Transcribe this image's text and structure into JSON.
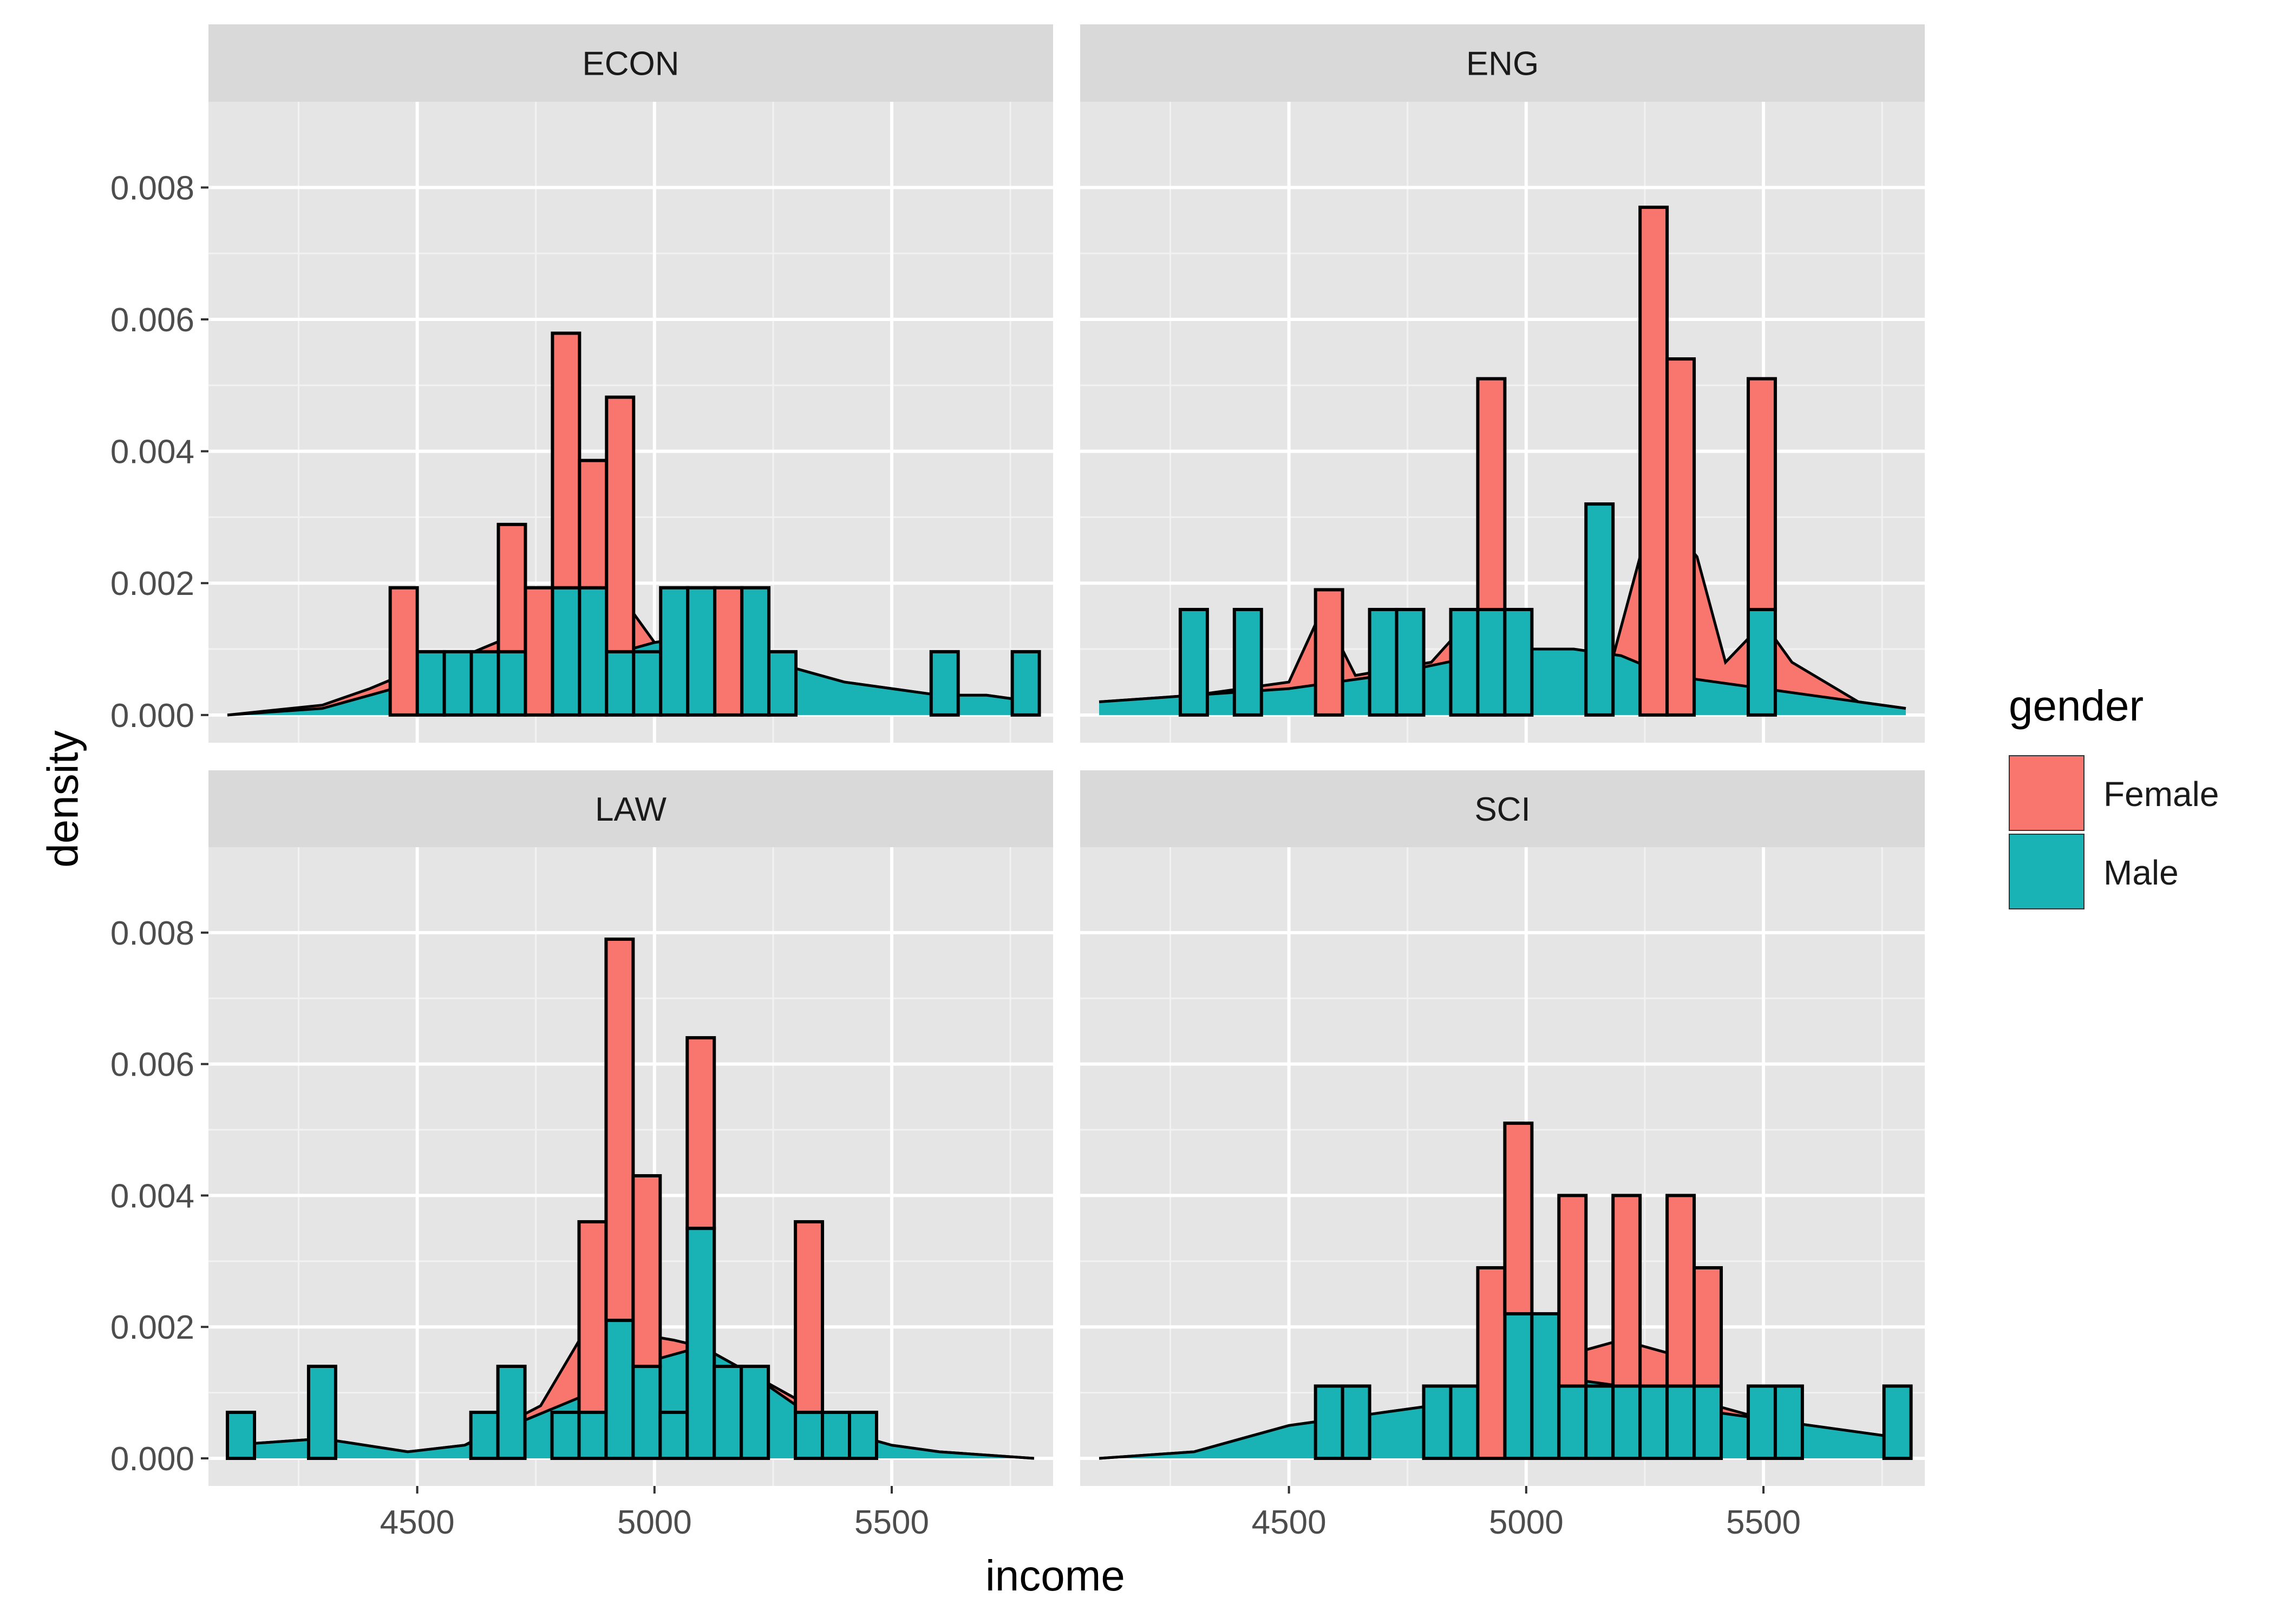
{
  "chart_data": {
    "type": "histogram-with-density",
    "xlabel": "income",
    "ylabel": "density",
    "xlim": [
      4060,
      5840
    ],
    "ylim": [
      -0.00042,
      0.0093
    ],
    "x_ticks": [
      4500,
      5000,
      5500
    ],
    "y_ticks": [
      0,
      0.002,
      0.004,
      0.006,
      0.008
    ],
    "y_tick_labels": [
      "0.000",
      "0.002",
      "0.004",
      "0.006",
      "0.008"
    ],
    "bins": {
      "start": 4100,
      "width": 57
    },
    "legend": {
      "title": "gender",
      "placement": "right",
      "entries": [
        {
          "name": "Female",
          "color": "#F8766D"
        },
        {
          "name": "Male",
          "color": "#00BFC4"
        }
      ]
    },
    "colors": {
      "Female": "#F8766D",
      "Male": "#19B3B6",
      "panel": "#E5E5E5",
      "strip": "#D9D9D9",
      "outline": "#000000"
    },
    "stacking": "stacked (Female on top of Male)",
    "facets": [
      {
        "title": "ECON",
        "hist_male": [
          [
            4500,
            0.00096
          ],
          [
            4557,
            0.00096
          ],
          [
            4614,
            0.00096
          ],
          [
            4671,
            0.00096
          ],
          [
            4785,
            0.00193
          ],
          [
            4842,
            0.00193
          ],
          [
            4899,
            0.00096
          ],
          [
            4956,
            0.00096
          ],
          [
            5013,
            0.00193
          ],
          [
            5070,
            0.00193
          ],
          [
            5184,
            0.00193
          ],
          [
            5241,
            0.00096
          ],
          [
            5583,
            0.00096
          ],
          [
            5754,
            0.00096
          ]
        ],
        "hist_female": [
          [
            4443,
            0.00193
          ],
          [
            4671,
            0.00193
          ],
          [
            4785,
            0.00386
          ],
          [
            4842,
            0.00193
          ],
          [
            4899,
            0.00386
          ],
          [
            4728,
            0.00193
          ],
          [
            5127,
            0.00193
          ]
        ],
        "density_male": [
          [
            4100,
            0
          ],
          [
            4300,
            0.0001
          ],
          [
            4400,
            0.0003
          ],
          [
            4500,
            0.0005
          ],
          [
            4600,
            0.0006
          ],
          [
            4700,
            0.0007
          ],
          [
            4800,
            0.0008
          ],
          [
            4900,
            0.0009
          ],
          [
            5000,
            0.0011
          ],
          [
            5100,
            0.0012
          ],
          [
            5200,
            0.0011
          ],
          [
            5300,
            0.0007
          ],
          [
            5400,
            0.0005
          ],
          [
            5500,
            0.0004
          ],
          [
            5600,
            0.0003
          ],
          [
            5700,
            0.0003
          ],
          [
            5800,
            0.0002
          ]
        ],
        "density_stack_top": [
          [
            4100,
            0
          ],
          [
            4300,
            0.00015
          ],
          [
            4400,
            0.0004
          ],
          [
            4500,
            0.0007
          ],
          [
            4600,
            0.0009
          ],
          [
            4700,
            0.0012
          ],
          [
            4800,
            0.002
          ],
          [
            4850,
            0.0027
          ],
          [
            4900,
            0.0023
          ],
          [
            4950,
            0.0016
          ],
          [
            5000,
            0.0011
          ],
          [
            5100,
            0.0012
          ],
          [
            5200,
            0.0011
          ],
          [
            5300,
            0.0007
          ],
          [
            5400,
            0.0005
          ],
          [
            5500,
            0.0004
          ],
          [
            5600,
            0.0003
          ],
          [
            5700,
            0.0003
          ],
          [
            5800,
            0.0002
          ]
        ]
      },
      {
        "title": "ENG",
        "hist_male": [
          [
            4271,
            0.0016
          ],
          [
            4385,
            0.0016
          ],
          [
            4670,
            0.0016
          ],
          [
            4727,
            0.0016
          ],
          [
            4841,
            0.0016
          ],
          [
            4898,
            0.0016
          ],
          [
            4955,
            0.0016
          ],
          [
            5126,
            0.0032
          ],
          [
            5468,
            0.0016
          ]
        ],
        "hist_female": [
          [
            4556,
            0.0019
          ],
          [
            4898,
            0.0035
          ],
          [
            5240,
            0.0077
          ],
          [
            5297,
            0.0054
          ],
          [
            5468,
            0.0035
          ]
        ],
        "density_male": [
          [
            4100,
            0.0002
          ],
          [
            4300,
            0.0003
          ],
          [
            4500,
            0.0004
          ],
          [
            4700,
            0.0006
          ],
          [
            4900,
            0.0009
          ],
          [
            5000,
            0.001
          ],
          [
            5100,
            0.001
          ],
          [
            5200,
            0.0009
          ],
          [
            5300,
            0.0006
          ],
          [
            5400,
            0.0005
          ],
          [
            5500,
            0.0004
          ],
          [
            5600,
            0.0003
          ],
          [
            5700,
            0.0002
          ],
          [
            5800,
            0.0001
          ]
        ],
        "density_stack_top": [
          [
            4100,
            0.0002
          ],
          [
            4300,
            0.0003
          ],
          [
            4500,
            0.0005
          ],
          [
            4570,
            0.0016
          ],
          [
            4640,
            0.0006
          ],
          [
            4800,
            0.0008
          ],
          [
            4900,
            0.0016
          ],
          [
            4980,
            0.001
          ],
          [
            5100,
            0.001
          ],
          [
            5180,
            0.0008
          ],
          [
            5240,
            0.0024
          ],
          [
            5290,
            0.003
          ],
          [
            5360,
            0.0024
          ],
          [
            5420,
            0.0008
          ],
          [
            5500,
            0.0014
          ],
          [
            5560,
            0.0008
          ],
          [
            5700,
            0.0002
          ],
          [
            5800,
            0.0001
          ]
        ]
      },
      {
        "title": "LAW",
        "hist_male": [
          [
            4100,
            0.0007
          ],
          [
            4271,
            0.0014
          ],
          [
            4613,
            0.0007
          ],
          [
            4670,
            0.0014
          ],
          [
            4784,
            0.0007
          ],
          [
            4841,
            0.0007
          ],
          [
            4898,
            0.0021
          ],
          [
            4955,
            0.0014
          ],
          [
            5012,
            0.0007
          ],
          [
            5069,
            0.0035
          ],
          [
            5126,
            0.0014
          ],
          [
            5183,
            0.0014
          ],
          [
            5297,
            0.0007
          ],
          [
            5354,
            0.0007
          ],
          [
            5411,
            0.0007
          ]
        ],
        "hist_female": [
          [
            4841,
            0.0029
          ],
          [
            4898,
            0.0058
          ],
          [
            4955,
            0.0029
          ],
          [
            5069,
            0.0029
          ],
          [
            5297,
            0.0029
          ]
        ],
        "density_male": [
          [
            4100,
            0.0002
          ],
          [
            4300,
            0.0003
          ],
          [
            4480,
            0.0001
          ],
          [
            4600,
            0.0002
          ],
          [
            4800,
            0.0008
          ],
          [
            4900,
            0.0011
          ],
          [
            5000,
            0.0015
          ],
          [
            5100,
            0.0017
          ],
          [
            5200,
            0.0013
          ],
          [
            5300,
            0.0008
          ],
          [
            5400,
            0.0004
          ],
          [
            5500,
            0.0002
          ],
          [
            5600,
            0.0001
          ],
          [
            5800,
            0
          ]
        ],
        "density_stack_top": [
          [
            4100,
            0.0002
          ],
          [
            4300,
            0.0003
          ],
          [
            4480,
            0.0001
          ],
          [
            4600,
            0.0002
          ],
          [
            4760,
            0.0008
          ],
          [
            4850,
            0.0019
          ],
          [
            4900,
            0.0022
          ],
          [
            4960,
            0.0019
          ],
          [
            5040,
            0.0018
          ],
          [
            5100,
            0.0017
          ],
          [
            5200,
            0.0013
          ],
          [
            5300,
            0.0009
          ],
          [
            5400,
            0.0004
          ],
          [
            5500,
            0.0002
          ],
          [
            5600,
            0.0001
          ],
          [
            5800,
            0
          ]
        ]
      },
      {
        "title": "SCI",
        "hist_male": [
          [
            4556,
            0.0011
          ],
          [
            4613,
            0.0011
          ],
          [
            4784,
            0.0011
          ],
          [
            4841,
            0.0011
          ],
          [
            4955,
            0.0022
          ],
          [
            5012,
            0.0022
          ],
          [
            5069,
            0.0011
          ],
          [
            5126,
            0.0011
          ],
          [
            5183,
            0.0011
          ],
          [
            5240,
            0.0011
          ],
          [
            5297,
            0.0011
          ],
          [
            5354,
            0.0011
          ],
          [
            5468,
            0.0011
          ],
          [
            5525,
            0.0011
          ],
          [
            5754,
            0.0011
          ]
        ],
        "hist_female": [
          [
            4898,
            0.0029
          ],
          [
            4955,
            0.0029
          ],
          [
            5069,
            0.0029
          ],
          [
            5183,
            0.0029
          ],
          [
            5297,
            0.0029
          ],
          [
            5354,
            0.0018
          ]
        ],
        "density_male": [
          [
            4100,
            0
          ],
          [
            4300,
            0.0001
          ],
          [
            4500,
            0.0005
          ],
          [
            4700,
            0.0007
          ],
          [
            4900,
            0.0009
          ],
          [
            5000,
            0.0011
          ],
          [
            5100,
            0.0012
          ],
          [
            5200,
            0.0011
          ],
          [
            5300,
            0.0009
          ],
          [
            5400,
            0.0007
          ],
          [
            5500,
            0.0006
          ],
          [
            5600,
            0.0005
          ],
          [
            5700,
            0.0004
          ],
          [
            5800,
            0.0003
          ]
        ],
        "density_stack_top": [
          [
            4100,
            0
          ],
          [
            4300,
            0.0001
          ],
          [
            4500,
            0.0005
          ],
          [
            4700,
            0.0007
          ],
          [
            4900,
            0.0009
          ],
          [
            5000,
            0.0013
          ],
          [
            5100,
            0.0016
          ],
          [
            5200,
            0.0018
          ],
          [
            5300,
            0.0016
          ],
          [
            5400,
            0.0008
          ],
          [
            5500,
            0.0006
          ],
          [
            5600,
            0.0005
          ],
          [
            5700,
            0.0004
          ],
          [
            5800,
            0.0003
          ]
        ]
      }
    ]
  }
}
